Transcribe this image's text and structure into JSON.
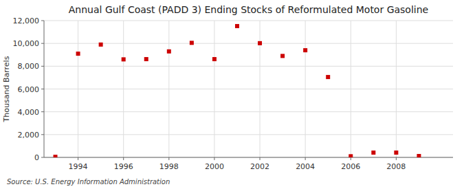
{
  "chart_data": {
    "type": "scatter",
    "title": "Annual Gulf Coast (PADD 3) Ending Stocks of Reformulated Motor Gasoline",
    "y_label": "Thousand Barrels",
    "source": "Source: U.S. Energy Information Administration",
    "x": [
      1993,
      1994,
      1995,
      1996,
      1997,
      1998,
      1999,
      2000,
      2001,
      2002,
      2003,
      2004,
      2005,
      2006,
      2007,
      2008,
      2009
    ],
    "values": [
      50,
      9100,
      9900,
      8600,
      8620,
      9300,
      10050,
      8620,
      11520,
      10020,
      8900,
      9400,
      7050,
      100,
      420,
      420,
      120
    ],
    "color": "#cc0000",
    "marker": "square",
    "xlim": [
      1992.5,
      2010.5
    ],
    "xticks": [
      1994,
      1996,
      1998,
      2000,
      2002,
      2004,
      2006,
      2008
    ],
    "ylim": [
      0,
      12000
    ],
    "yticks": [
      0,
      {
        "value": 2000,
        "label": "2,000"
      },
      {
        "value": 4000,
        "label": "4,000"
      },
      {
        "value": 6000,
        "label": "6,000"
      },
      {
        "value": 8000,
        "label": "8,000"
      },
      {
        "value": 10000,
        "label": "10,000"
      },
      {
        "value": 12000,
        "label": "12,000"
      }
    ],
    "grid": true
  }
}
